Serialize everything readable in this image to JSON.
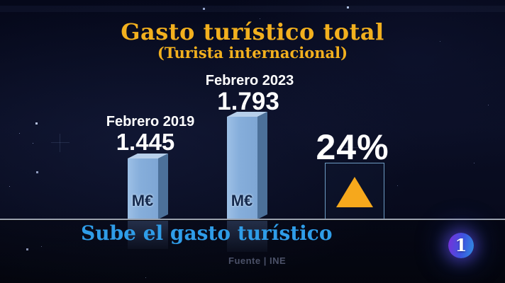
{
  "title": "Gasto turístico total",
  "subtitle": "(Turista internacional)",
  "chart_data": {
    "type": "bar",
    "title": "Gasto turístico total",
    "subtitle": "(Turista internacional)",
    "categories": [
      "Febrero 2019",
      "Febrero 2023"
    ],
    "values": [
      1445,
      1793
    ],
    "value_labels": [
      "1.445",
      "1.793"
    ],
    "unit": "M€",
    "legend": "none",
    "grid": false,
    "baseline": "x-axis shown as horizontal gray rule",
    "bar_color": "#86aedb",
    "annotation": {
      "text": "24%",
      "icon": "up-triangle",
      "meaning": "increase vs 2019"
    },
    "source": "Fuente | INE"
  },
  "delta": {
    "label": "24%",
    "direction": "up"
  },
  "footer": {
    "headline": "Sube el gasto turístico",
    "source": "Fuente | INE"
  },
  "branding": {
    "channel": "1"
  },
  "colors": {
    "background": "#0a0e24",
    "title": "#f2b01e",
    "headline": "#2f9de8",
    "bar_front": "#86aedb",
    "bar_side": "#4c7099",
    "bar_top": "#b7cfea",
    "triangle": "#f6a81c",
    "percent_text": "#ffffff",
    "baseline": "#9aa1ad",
    "source_text": "#4b5168"
  }
}
